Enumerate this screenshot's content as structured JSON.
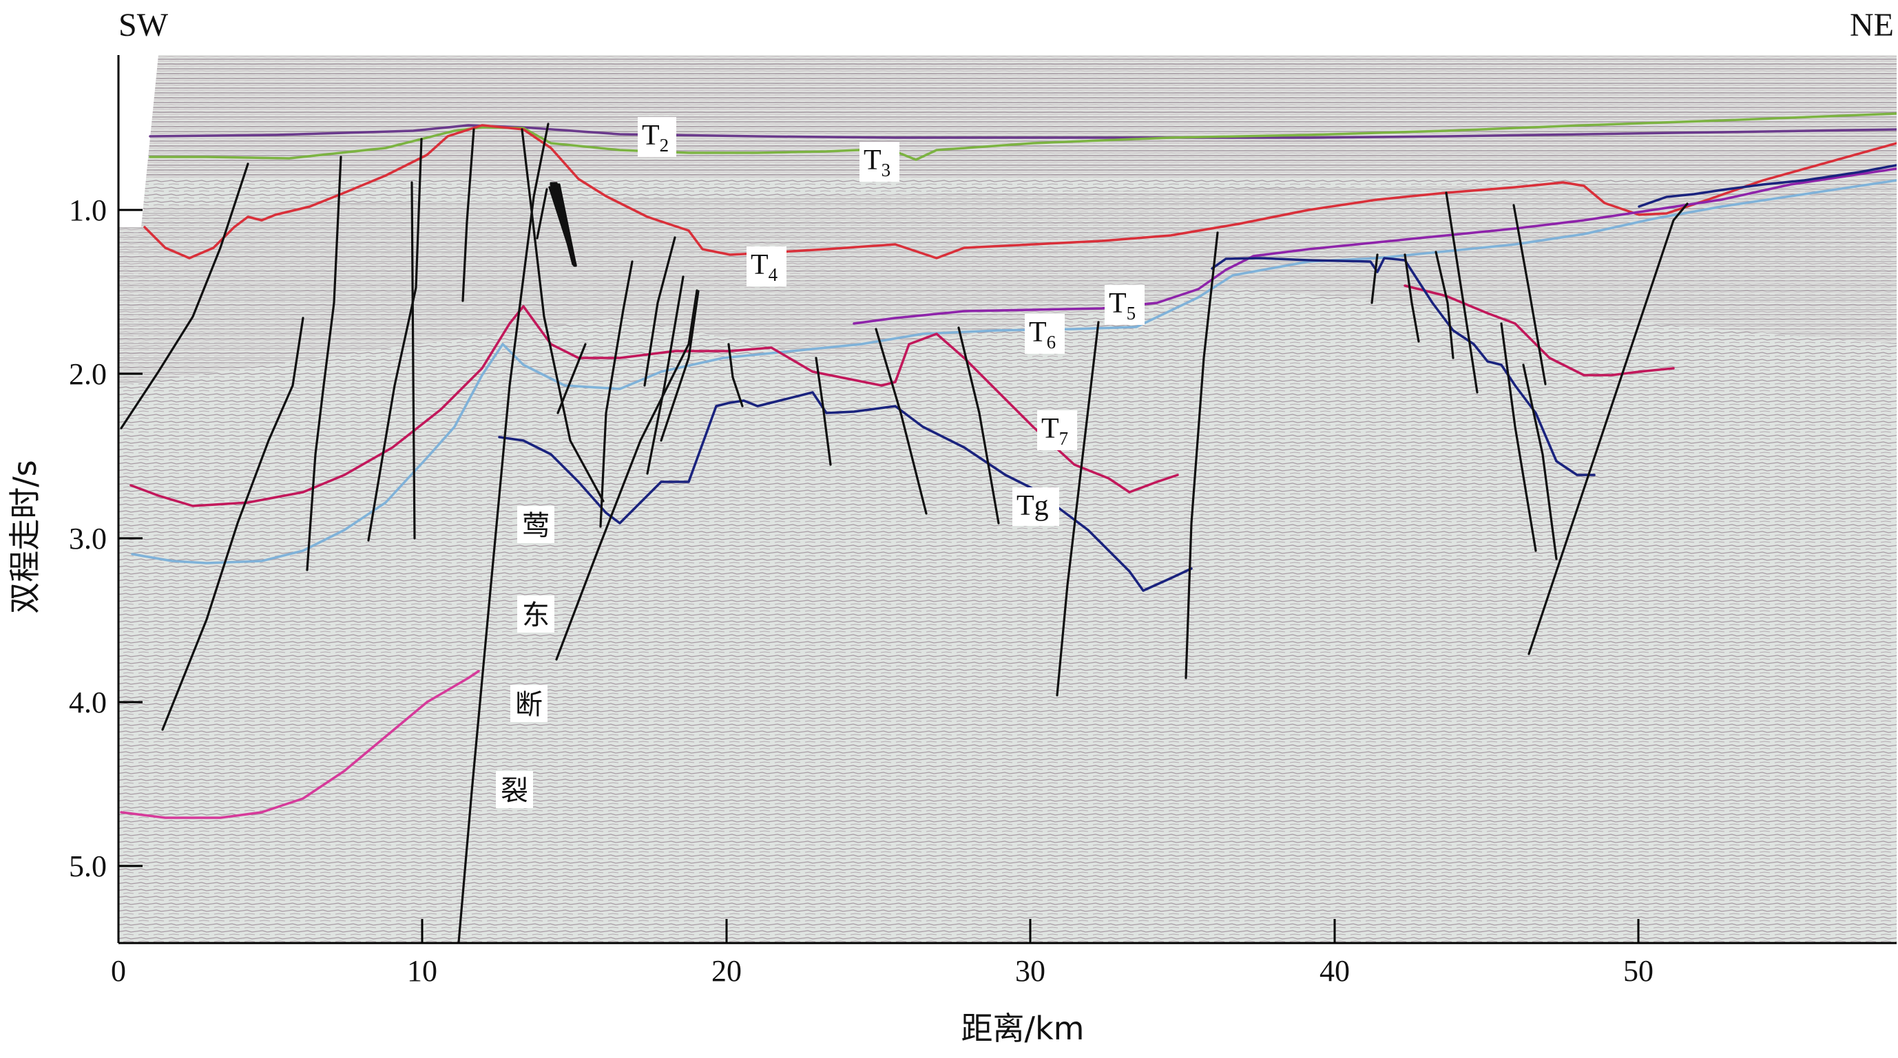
{
  "corners": {
    "left": "SW",
    "right": "NE"
  },
  "y_axis": {
    "label": "双程走时/s",
    "ticks": [
      "1.0",
      "2.0",
      "3.0",
      "4.0",
      "5.0"
    ]
  },
  "x_axis": {
    "label": "距离/km",
    "ticks": [
      "0",
      "10",
      "20",
      "30",
      "40",
      "50"
    ]
  },
  "horizons": {
    "T2": {
      "base": "T",
      "sub": "2",
      "color": "#6a3a8c"
    },
    "T3": {
      "base": "T",
      "sub": "3",
      "color": "#7cb342"
    },
    "T4": {
      "base": "T",
      "sub": "4",
      "color": "#d9303a"
    },
    "T5": {
      "base": "T",
      "sub": "5",
      "color": "#8e24aa"
    },
    "T6": {
      "base": "T",
      "sub": "6",
      "color": "#7fb2d9"
    },
    "T7": {
      "base": "T",
      "sub": "7",
      "color": "#c2185b"
    },
    "Tg": {
      "text": "Tg",
      "color": "#1a237e"
    },
    "deep": {
      "color": "#d63a9a"
    }
  },
  "fault_label": [
    "莺",
    "东",
    "断",
    "裂"
  ],
  "background_color": "#dde3e0"
}
